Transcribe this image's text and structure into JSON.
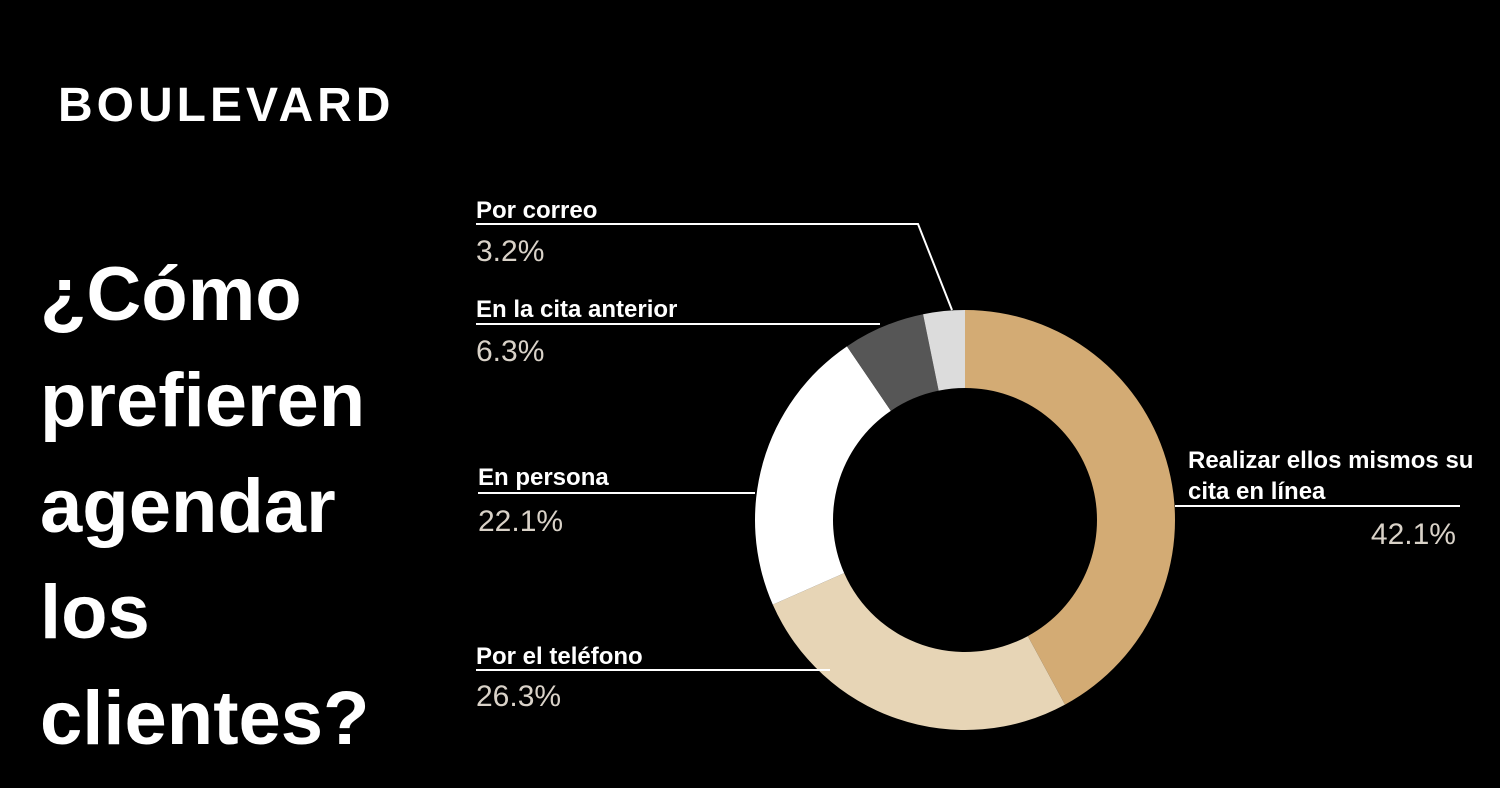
{
  "brand": "BOULEVARD",
  "chart_data": {
    "type": "donut",
    "title": "¿Cómo prefieren agendar los clientes?",
    "categories": [
      "Realizar ellos mismos su cita en línea",
      "Por el teléfono",
      "En persona",
      "En la cita anterior",
      "Por correo"
    ],
    "values": [
      42.1,
      26.3,
      22.1,
      6.3,
      3.2
    ],
    "value_labels": [
      "42.1%",
      "26.3%",
      "22.1%",
      "6.3%",
      "3.2%"
    ],
    "colors": [
      "#d3ab74",
      "#e7d5b6",
      "#ffffff",
      "#565656",
      "#dcdcdc"
    ]
  }
}
